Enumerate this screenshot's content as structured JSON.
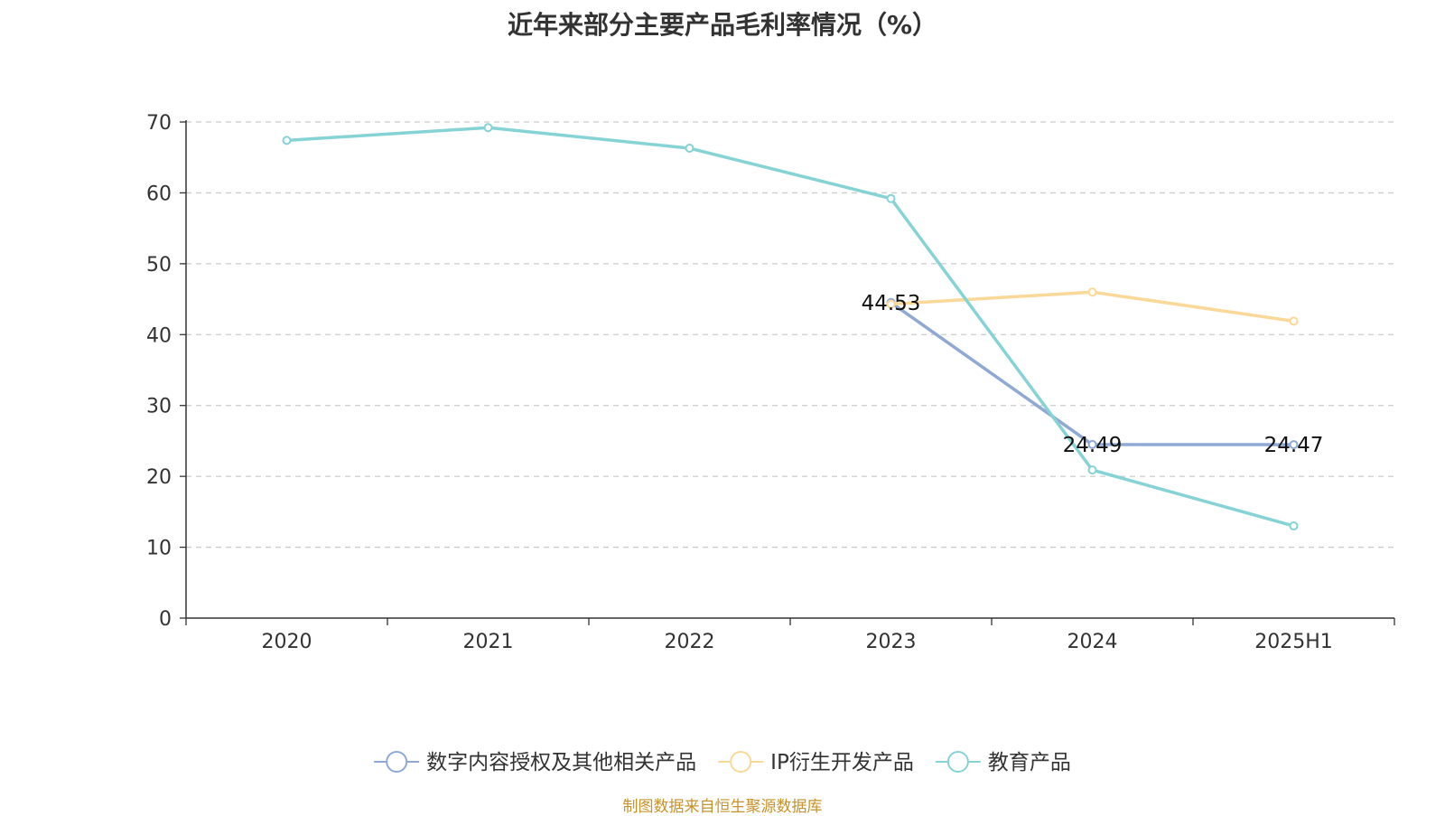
{
  "chart_data": {
    "type": "line",
    "title": "近年来部分主要产品毛利率情况（%）",
    "categories": [
      "2020",
      "2021",
      "2022",
      "2023",
      "2024",
      "2025H1"
    ],
    "ylim": [
      0,
      70
    ],
    "yticks": [
      0,
      10,
      20,
      30,
      40,
      50,
      60,
      70
    ],
    "grid": true,
    "legend_position": "bottom",
    "series": [
      {
        "name": "数字内容授权及其他相关产品",
        "color": "#8fa9d4",
        "values": [
          null,
          null,
          null,
          44.53,
          24.49,
          24.47
        ],
        "labels": [
          null,
          null,
          null,
          "44.53",
          "24.49",
          "24.47"
        ]
      },
      {
        "name": "IP衍生开发产品",
        "color": "#f9d898",
        "values": [
          null,
          null,
          null,
          44.3,
          46.0,
          41.9
        ],
        "labels": [
          null,
          null,
          null,
          null,
          null,
          null
        ]
      },
      {
        "name": "教育产品",
        "color": "#86d3d6",
        "values": [
          67.4,
          69.2,
          66.3,
          59.2,
          20.9,
          13.0
        ],
        "labels": [
          null,
          null,
          null,
          null,
          null,
          null
        ]
      }
    ]
  },
  "footer": {
    "source": "制图数据来自恒生聚源数据库"
  }
}
